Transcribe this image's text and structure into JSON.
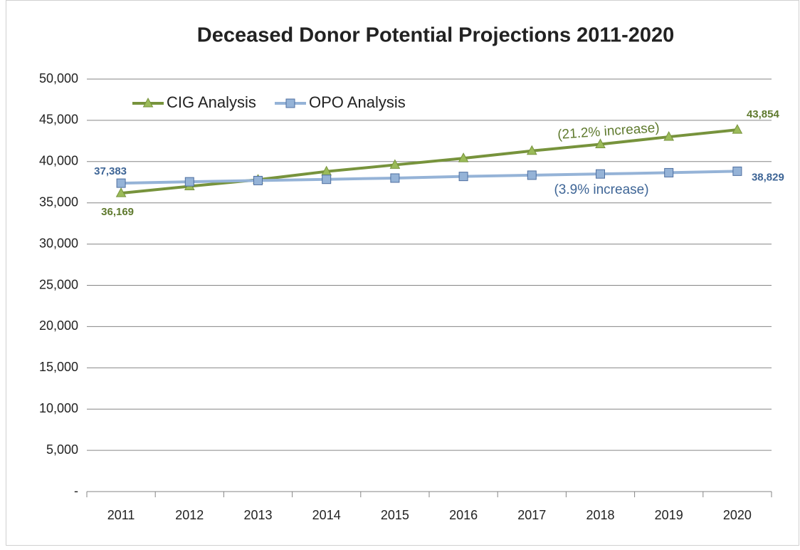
{
  "chart_data": {
    "type": "line",
    "title": "Deceased Donor Potential Projections 2011-2020",
    "categories": [
      "2011",
      "2012",
      "2013",
      "2014",
      "2015",
      "2016",
      "2017",
      "2018",
      "2019",
      "2020"
    ],
    "series": [
      {
        "name": "CIG Analysis",
        "color": "#77933c",
        "marker_color": "#9bbb59",
        "label_color": "#5f7a2e",
        "marker": "triangle",
        "values": [
          36169,
          37000,
          37800,
          38800,
          39600,
          40400,
          41300,
          42100,
          43000,
          43854
        ],
        "value_labels": [
          "36,169",
          null,
          null,
          null,
          null,
          null,
          null,
          null,
          null,
          "43,854"
        ]
      },
      {
        "name": "OPO Analysis",
        "color": "#95b3d7",
        "marker_color": "#95b3d7",
        "label_color": "#3e6596",
        "marker": "square",
        "values": [
          37383,
          37550,
          37700,
          37850,
          38000,
          38200,
          38350,
          38500,
          38650,
          38829
        ],
        "value_labels": [
          "37,383",
          null,
          null,
          null,
          null,
          null,
          null,
          null,
          null,
          "38,829"
        ]
      }
    ],
    "annotations": [
      {
        "text": "(21.2% increase)",
        "color": "#5f7a2e"
      },
      {
        "text": "(3.9% increase)",
        "color": "#3e6596"
      }
    ],
    "ylim": [
      0,
      50000
    ],
    "yticks": [
      {
        "value": 0,
        "label": "-"
      },
      {
        "value": 5000,
        "label": "5,000"
      },
      {
        "value": 10000,
        "label": "10,000"
      },
      {
        "value": 15000,
        "label": "15,000"
      },
      {
        "value": 20000,
        "label": "20,000"
      },
      {
        "value": 25000,
        "label": "25,000"
      },
      {
        "value": 30000,
        "label": "30,000"
      },
      {
        "value": 35000,
        "label": "35,000"
      },
      {
        "value": 40000,
        "label": "40,000"
      },
      {
        "value": 45000,
        "label": "45,000"
      },
      {
        "value": 50000,
        "label": "50,000"
      }
    ],
    "grid": true,
    "legend": "top-left"
  }
}
